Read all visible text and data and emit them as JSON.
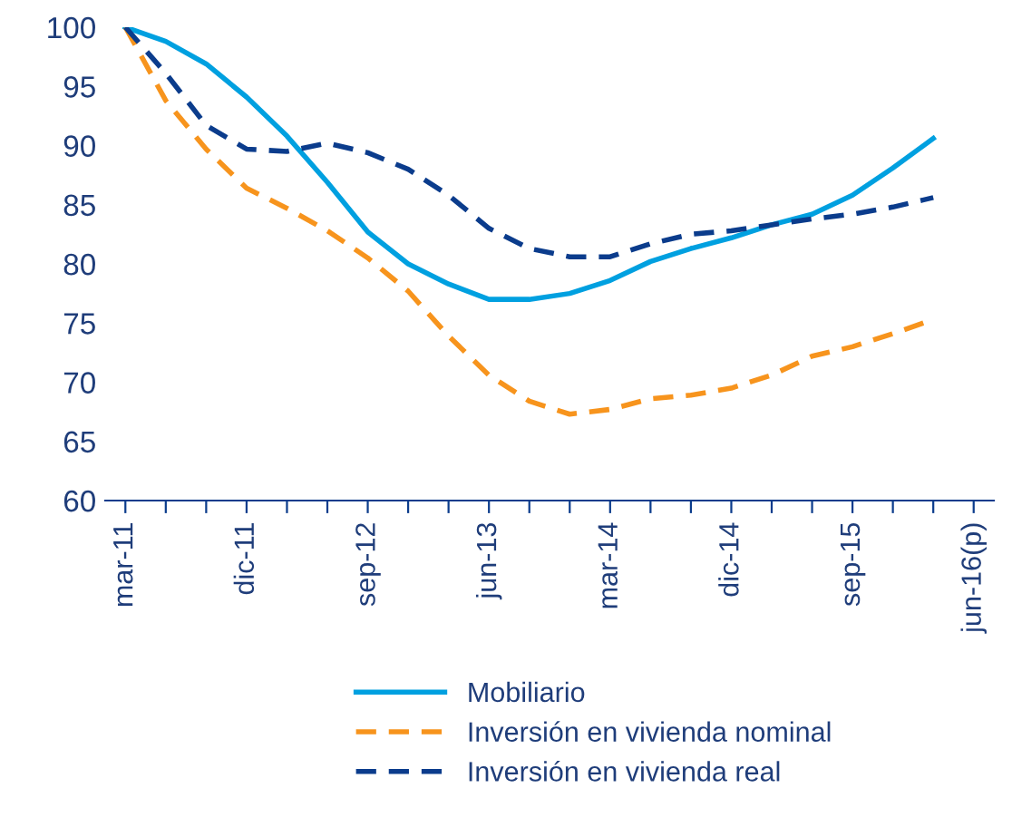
{
  "chart_data": {
    "type": "line",
    "categories": [
      "mar-11",
      null,
      null,
      "dic-11",
      null,
      null,
      "sep-12",
      null,
      null,
      "jun-13",
      null,
      null,
      "mar-14",
      null,
      null,
      "dic-14",
      null,
      null,
      "sep-15",
      null,
      null,
      "jun-16(p)"
    ],
    "series": [
      {
        "name": "Mobiliario",
        "color": "#00a0e0",
        "line_style": "solid",
        "values": [
          100,
          98.8,
          96.9,
          94.1,
          90.8,
          86.9,
          82.7,
          80,
          78.3,
          77,
          77,
          77.5,
          78.6,
          80.2,
          81.3,
          82.2,
          83.3,
          84.2,
          85.8,
          88.1,
          90.6,
          null
        ]
      },
      {
        "name": "Inversión en vivienda nominal",
        "color": "#f7941d",
        "line_style": "dashed",
        "values": [
          100,
          93.8,
          89.7,
          86.4,
          84.7,
          82.8,
          80.5,
          77.7,
          73.9,
          70.6,
          68.4,
          67.3,
          67.7,
          68.6,
          68.9,
          69.5,
          70.6,
          72.2,
          73,
          74.1,
          75.3,
          null
        ]
      },
      {
        "name": "Inversión en vivienda real",
        "color": "#0b3c8c",
        "line_style": "dashed",
        "values": [
          100,
          96.1,
          91.7,
          89.7,
          89.5,
          90.2,
          89.4,
          88,
          85.8,
          83,
          81.3,
          80.6,
          80.6,
          81.7,
          82.5,
          82.8,
          83.3,
          83.8,
          84.2,
          84.8,
          85.6,
          null
        ]
      }
    ],
    "ylim": [
      60,
      100
    ],
    "yticks": [
      60,
      65,
      70,
      75,
      80,
      85,
      90,
      95,
      100
    ],
    "legend": "bottom",
    "marker": "none"
  }
}
